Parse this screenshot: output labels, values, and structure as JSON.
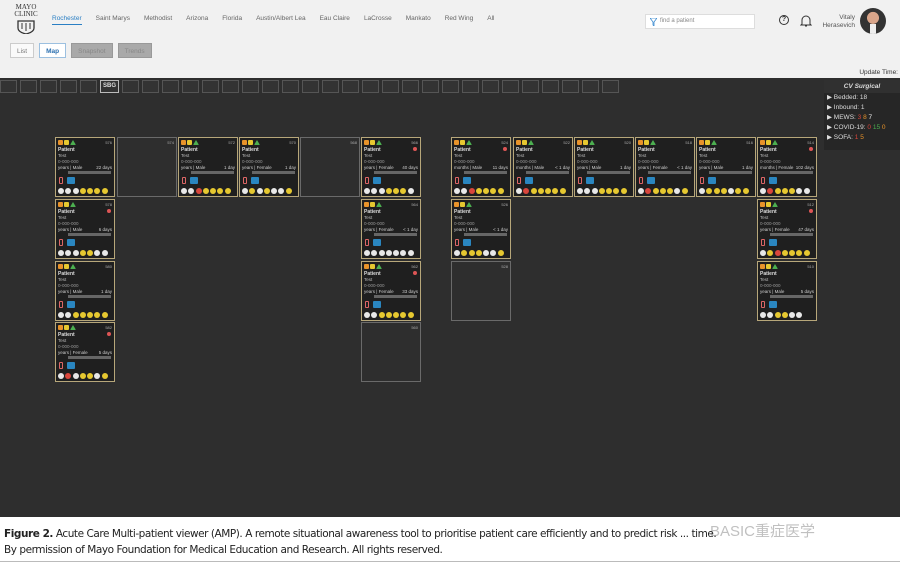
{
  "brand": {
    "logo_text": "MAYO CLINIC"
  },
  "nav": [
    "Rochester",
    "Saint Marys",
    "Methodist",
    "Arizona",
    "Florida",
    "Austin/Albert Lea",
    "Eau Claire",
    "LaCrosse",
    "Mankato",
    "Red Wing",
    "All"
  ],
  "nav_active": 0,
  "views": [
    {
      "label": "List",
      "state": "normal"
    },
    {
      "label": "Map",
      "state": "active"
    },
    {
      "label": "Snapshot",
      "state": "disabled"
    },
    {
      "label": "Trends",
      "state": "disabled"
    }
  ],
  "search": {
    "placeholder": "find a patient"
  },
  "user": {
    "first": "Vitaly",
    "last": "Herasevich"
  },
  "update_label": "Update Time:",
  "unit_tabs": [
    "",
    "",
    "",
    "",
    "",
    "SBG",
    "",
    "",
    "",
    "",
    "",
    "",
    "",
    "",
    "",
    "",
    "",
    "",
    "",
    "",
    "",
    "",
    "",
    "",
    "",
    "",
    "",
    "",
    "",
    "",
    ""
  ],
  "unit_tab_selected": 5,
  "panel": {
    "title": "CV Surgical",
    "bedded": "▶ Bedded: 18",
    "inbound": "▶ Inbound: 1",
    "mews_label": "▶ MEWS:",
    "mews": [
      "3",
      "8",
      "7"
    ],
    "covid_label": "▶ COVID-19:",
    "covid": [
      "0",
      "15",
      "0"
    ],
    "sofa_label": "▶ SOFA:",
    "sofa": [
      "1",
      "5"
    ]
  },
  "colors": {
    "red": "#d9463c",
    "orange": "#e8932a",
    "yellow": "#e6c830",
    "white": "#e8e8e8",
    "green": "#4caf50",
    "card_border": "#b7a77a"
  },
  "card_text": {
    "name": "Patient",
    "sub": "Test",
    "mrn": "0-000-000"
  },
  "cards": [
    {
      "bed": "576",
      "info": "years | Male",
      "days": "22 days",
      "alert": false,
      "circles": "wwwyyyy",
      "empty": false,
      "row": 0,
      "col": 0
    },
    {
      "bed": "574",
      "empty": true,
      "row": 0,
      "col": 1
    },
    {
      "bed": "572",
      "info": "years | Male",
      "days": "1 day",
      "alert": false,
      "circles": "wwryyyy",
      "empty": false,
      "row": 0,
      "col": 2
    },
    {
      "bed": "570",
      "info": "years | Female",
      "days": "1 day",
      "alert": false,
      "circles": "wywywwy",
      "empty": false,
      "row": 0,
      "col": 3
    },
    {
      "bed": "568",
      "empty": true,
      "row": 0,
      "col": 4
    },
    {
      "bed": "566",
      "info": "years | Female",
      "days": "40 days",
      "alert": true,
      "circles": "wwwyyyw",
      "empty": false,
      "row": 0,
      "col": 5
    },
    {
      "bed": "578",
      "info": "years | Male",
      "days": "6 days",
      "alert": true,
      "circles": "wwwyyww",
      "empty": false,
      "row": 1,
      "col": 0
    },
    {
      "bed": "564",
      "info": "years | Female",
      "days": "< 1 day",
      "alert": false,
      "circles": "wwwwwww",
      "empty": false,
      "row": 1,
      "col": 5
    },
    {
      "bed": "580",
      "info": "years | Male",
      "days": "1 day",
      "alert": false,
      "circles": "wwyyyyy",
      "empty": false,
      "row": 2,
      "col": 0
    },
    {
      "bed": "562",
      "info": "years | Female",
      "days": "33 days",
      "alert": true,
      "circles": "wwyyyyy",
      "empty": false,
      "row": 2,
      "col": 5
    },
    {
      "bed": "582",
      "info": "years | Female",
      "days": "5 days",
      "alert": true,
      "circles": "wrwyywy",
      "empty": false,
      "row": 3,
      "col": 0
    },
    {
      "bed": "560",
      "empty": true,
      "row": 3,
      "col": 5
    },
    {
      "bed": "524",
      "info": "months | Male",
      "days": "11 days",
      "alert": true,
      "circles": "wwryyyy",
      "empty": false,
      "row": 0,
      "col": 6
    },
    {
      "bed": "522",
      "info": "months | Male",
      "days": "< 1 day",
      "alert": false,
      "circles": "wryyyyy",
      "empty": false,
      "row": 0,
      "col": 7
    },
    {
      "bed": "520",
      "info": "years | Male",
      "days": "1 day",
      "alert": false,
      "circles": "wwwyyyy",
      "empty": false,
      "row": 0,
      "col": 8
    },
    {
      "bed": "518",
      "info": "years | Female",
      "days": "< 1 day",
      "alert": false,
      "circles": "wryyywy",
      "empty": false,
      "row": 0,
      "col": 9
    },
    {
      "bed": "516",
      "info": "years | Male",
      "days": "1 day",
      "alert": false,
      "circles": "wyyywyy",
      "empty": false,
      "row": 0,
      "col": 10
    },
    {
      "bed": "514",
      "info": "months | Female",
      "days": "102 days",
      "alert": true,
      "circles": "wryyyww",
      "empty": false,
      "row": 0,
      "col": 11
    },
    {
      "bed": "526",
      "info": "years | Male",
      "days": "< 1 day",
      "alert": false,
      "circles": "wyyywwy",
      "empty": false,
      "row": 1,
      "col": 6
    },
    {
      "bed": "512",
      "info": "years | Female",
      "days": "47 days",
      "alert": true,
      "circles": "wyryyyy",
      "empty": false,
      "row": 1,
      "col": 11
    },
    {
      "bed": "528",
      "empty": true,
      "row": 2,
      "col": 6
    },
    {
      "bed": "510",
      "info": "years | Male",
      "days": "5 days",
      "alert": false,
      "circles": "wwyyww",
      "empty": false,
      "row": 2,
      "col": 11
    }
  ],
  "caption": {
    "label": "Figure 2.",
    "text": "Acute Care Multi-patient viewer (AMP). A remote situational awareness tool to prioritise patient care efficiently and to predict risk ... time.",
    "line2": "By permission of Mayo Foundation for Medical Education and Research.  All rights reserved."
  },
  "watermark": "BASIC重症医学"
}
